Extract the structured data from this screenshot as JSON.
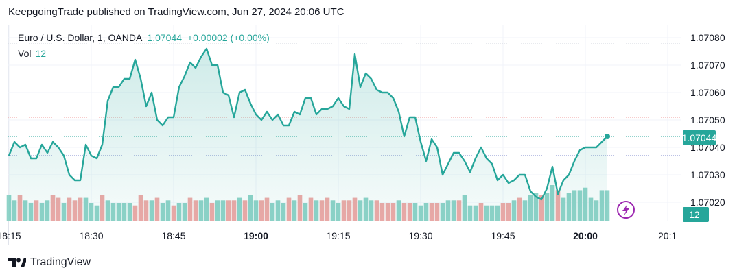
{
  "publisher_line": "KeepgoingTrade published on TradingView.com, Jun 27, 2024 20:06 UTC",
  "legend": {
    "symbol": "Euro / U.S. Dollar, 1, OANDA",
    "last": "1.07044",
    "change": "+0.00002 (+0.00%)",
    "vol_label": "Vol",
    "vol_value": "12"
  },
  "price_badge": "1.07044",
  "volume_badge": "12",
  "brand": "TradingView",
  "colors": {
    "line": "#26a69a",
    "fill": "#e0f2ef",
    "vol_up": "#8fd3c8",
    "vol_down": "#f0a8a6",
    "badge": "#26a69a",
    "flash": "#9c27b0"
  },
  "chart_data": {
    "type": "line",
    "title": "Euro / U.S. Dollar, 1, OANDA",
    "ylim": [
      1.07015,
      1.07083
    ],
    "y_ticks": [
      "1.07020",
      "1.07030",
      "1.07040",
      "1.07050",
      "1.07060",
      "1.07070",
      "1.07080"
    ],
    "x_ticks": [
      {
        "label": "18:15",
        "t": 0,
        "bold": false
      },
      {
        "label": "18:30",
        "t": 15,
        "bold": false
      },
      {
        "label": "18:45",
        "t": 30,
        "bold": false
      },
      {
        "label": "19:00",
        "t": 45,
        "bold": true
      },
      {
        "label": "19:15",
        "t": 60,
        "bold": false
      },
      {
        "label": "19:30",
        "t": 75,
        "bold": false
      },
      {
        "label": "19:45",
        "t": 90,
        "bold": false
      },
      {
        "label": "20:00",
        "t": 105,
        "bold": true
      },
      {
        "label": "20:1",
        "t": 120,
        "bold": false
      }
    ],
    "start_time": "18:15",
    "h_lines": [
      1.07078,
      1.07051,
      1.07044,
      1.07037
    ],
    "series": [
      {
        "values": [
          1.07037,
          1.07042,
          1.0704,
          1.07041,
          1.07036,
          1.07036,
          1.07041,
          1.07038,
          1.07042,
          1.0704,
          1.07037,
          1.0703,
          1.07028,
          1.07028,
          1.07041,
          1.07037,
          1.07036,
          1.07041,
          1.07057,
          1.07062,
          1.07062,
          1.07065,
          1.07065,
          1.07072,
          1.07065,
          1.07055,
          1.0706,
          1.0705,
          1.07048,
          1.07051,
          1.07051,
          1.07062,
          1.07066,
          1.07071,
          1.07069,
          1.07073,
          1.07076,
          1.0707,
          1.0707,
          1.0706,
          1.07059,
          1.07051,
          1.0706,
          1.07061,
          1.07056,
          1.07052,
          1.0705,
          1.07053,
          1.0705,
          1.07052,
          1.07048,
          1.07048,
          1.07053,
          1.07052,
          1.07058,
          1.07058,
          1.07052,
          1.07054,
          1.07054,
          1.07055,
          1.07058,
          1.07055,
          1.07054,
          1.07074,
          1.07062,
          1.07067,
          1.07065,
          1.07061,
          1.0706,
          1.0706,
          1.07058,
          1.07053,
          1.07044,
          1.07051,
          1.07051,
          1.07042,
          1.07035,
          1.07043,
          1.0704,
          1.0703,
          1.07034,
          1.07038,
          1.07038,
          1.07035,
          1.07031,
          1.07036,
          1.0704,
          1.07036,
          1.07034,
          1.07028,
          1.0703,
          1.07027,
          1.07028,
          1.0703,
          1.0703,
          1.07024,
          1.07022,
          1.07021,
          1.07025,
          1.07033,
          1.07023,
          1.07028,
          1.0703,
          1.07035,
          1.07039,
          1.0704,
          1.0704,
          1.0704,
          1.07042,
          1.07044
        ]
      }
    ],
    "volume": [
      10,
      8,
      10,
      8,
      7,
      8,
      7,
      8,
      10,
      9,
      7,
      9,
      8,
      9,
      9,
      7,
      6,
      10,
      8,
      7,
      7,
      7,
      7,
      6,
      10,
      8,
      8,
      9,
      7,
      8,
      6,
      7,
      7,
      9,
      8,
      8,
      9,
      7,
      8,
      8,
      8,
      8,
      9,
      8,
      10,
      8,
      8,
      9,
      7,
      8,
      7,
      9,
      8,
      10,
      7,
      9,
      8,
      8,
      9,
      8,
      7,
      8,
      8,
      9,
      8,
      9,
      8,
      8,
      7,
      7,
      7,
      8,
      7,
      7,
      7,
      6,
      7,
      7,
      7,
      7,
      8,
      8,
      8,
      10,
      6,
      6,
      7,
      6,
      6,
      6,
      7,
      7,
      8,
      9,
      8,
      10,
      11,
      10,
      11,
      14,
      12,
      9,
      11,
      12,
      12,
      13,
      9,
      8,
      12,
      12
    ],
    "volume_up": [
      1,
      1,
      0,
      1,
      1,
      0,
      1,
      1,
      0,
      0,
      1,
      0,
      0,
      0,
      1,
      1,
      1,
      0,
      1,
      1,
      1,
      1,
      1,
      0,
      0,
      0,
      1,
      0,
      1,
      1,
      0,
      1,
      1,
      0,
      0,
      1,
      1,
      0,
      1,
      1,
      0,
      0,
      1,
      0,
      1,
      1,
      0,
      0,
      1,
      1,
      1,
      0,
      1,
      0,
      1,
      0,
      1,
      0,
      0,
      1,
      1,
      0,
      0,
      0,
      1,
      1,
      1,
      0,
      0,
      0,
      0,
      1,
      0,
      0,
      1,
      1,
      1,
      0,
      0,
      1,
      1,
      1,
      0,
      1,
      1,
      1,
      0,
      1,
      1,
      1,
      0,
      0,
      1,
      0,
      1,
      1,
      1,
      0,
      1,
      1,
      0,
      1,
      1,
      1,
      1,
      1,
      1,
      1,
      1,
      1
    ]
  }
}
